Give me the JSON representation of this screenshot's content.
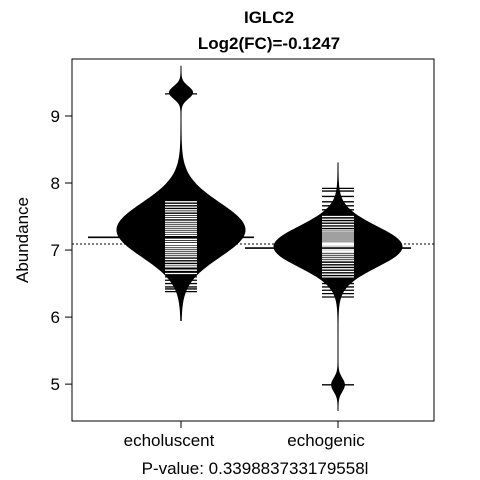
{
  "chart_data": {
    "type": "beanplot",
    "title": "IGLC2",
    "subtitle": "Log2(FC)=-0.1247",
    "xlabel": "",
    "ylabel": "Abundance",
    "footer": "P-value: 0.339883733179558l",
    "categories": [
      "echoluscent",
      "echogenic"
    ],
    "ylim": [
      4.45,
      9.85
    ],
    "yticks": [
      5,
      6,
      7,
      8,
      9
    ],
    "overall_mean": 7.09,
    "groups": [
      {
        "name": "echoluscent",
        "mean": 7.19,
        "range": [
          5.95,
          9.75
        ],
        "modes": [
          {
            "center": 7.3,
            "sd": 0.4,
            "weight": 1.0
          },
          {
            "center": 9.35,
            "sd": 0.09,
            "weight": 0.18
          }
        ],
        "observations": [
          6.38,
          6.42,
          6.45,
          6.5,
          6.55,
          6.6,
          6.65,
          6.7,
          6.75,
          6.78,
          6.82,
          6.86,
          6.9,
          6.93,
          6.96,
          6.99,
          7.02,
          7.05,
          7.08,
          7.1,
          7.13,
          7.16,
          7.19,
          7.22,
          7.25,
          7.28,
          7.31,
          7.34,
          7.37,
          7.4,
          7.43,
          7.47,
          7.5,
          7.53,
          7.57,
          7.6,
          7.64,
          7.68,
          7.72,
          9.33
        ]
      },
      {
        "name": "echogenic",
        "mean": 7.03,
        "range": [
          4.6,
          8.3
        ],
        "modes": [
          {
            "center": 7.05,
            "sd": 0.3,
            "weight": 1.0
          },
          {
            "center": 4.99,
            "sd": 0.1,
            "weight": 0.1
          }
        ],
        "observations": [
          6.3,
          6.35,
          6.4,
          6.45,
          6.5,
          6.55,
          6.6,
          6.64,
          6.68,
          6.72,
          6.76,
          6.8,
          6.84,
          6.87,
          6.9,
          6.93,
          6.96,
          6.98,
          7.0,
          7.02,
          7.04,
          7.06,
          7.08,
          7.1,
          7.12,
          7.15,
          7.18,
          7.21,
          7.24,
          7.27,
          7.3,
          7.34,
          7.38,
          7.42,
          7.46,
          7.5,
          7.55,
          7.6,
          7.66,
          7.72,
          7.8,
          7.88,
          7.92,
          4.99
        ]
      }
    ]
  }
}
